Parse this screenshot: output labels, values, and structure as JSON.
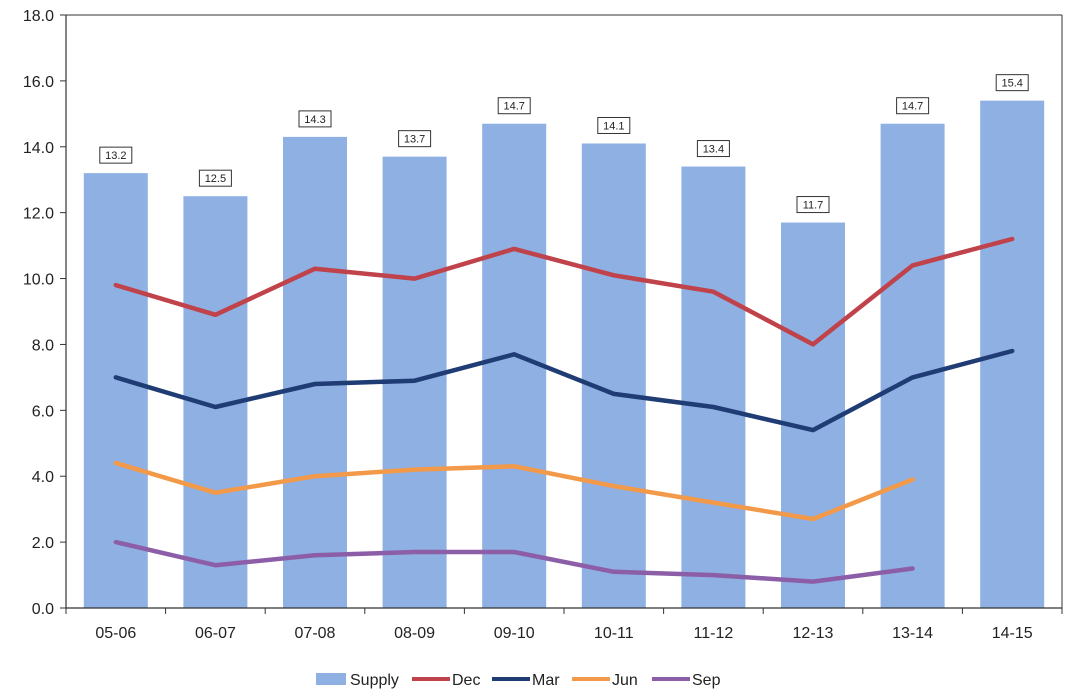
{
  "chart_data": {
    "type": "bar",
    "title": "",
    "xlabel": "",
    "ylabel": "",
    "ylim": [
      0,
      18
    ],
    "yticks": [
      "0.0",
      "2.0",
      "4.0",
      "6.0",
      "8.0",
      "10.0",
      "12.0",
      "14.0",
      "16.0",
      "18.0"
    ],
    "categories": [
      "05-06",
      "06-07",
      "07-08",
      "08-09",
      "09-10",
      "10-11",
      "11-12",
      "12-13",
      "13-14",
      "14-15"
    ],
    "bar_series": {
      "name": "Supply",
      "values": [
        13.2,
        12.5,
        14.3,
        13.7,
        14.7,
        14.1,
        13.4,
        11.7,
        14.7,
        15.4
      ],
      "labels": [
        "13.2",
        "12.5",
        "14.3",
        "13.7",
        "14.7",
        "14.1",
        "13.4",
        "11.7",
        "14.7",
        "15.4"
      ],
      "color": "#8eb0e2"
    },
    "line_series": [
      {
        "name": "Dec",
        "color": "#c0424a",
        "values": [
          9.8,
          8.9,
          10.3,
          10.0,
          10.9,
          10.1,
          9.6,
          8.0,
          10.4,
          11.2
        ]
      },
      {
        "name": "Mar",
        "color": "#1f3c74",
        "values": [
          7.0,
          6.1,
          6.8,
          6.9,
          7.7,
          6.5,
          6.1,
          5.4,
          7.0,
          7.8
        ]
      },
      {
        "name": "Jun",
        "color": "#f39a4a",
        "values": [
          4.4,
          3.5,
          4.0,
          4.2,
          4.3,
          3.7,
          3.2,
          2.7,
          3.9,
          null
        ]
      },
      {
        "name": "Sep",
        "color": "#8d5ea8",
        "values": [
          2.0,
          1.3,
          1.6,
          1.7,
          1.7,
          1.1,
          1.0,
          0.8,
          1.2,
          null
        ]
      }
    ],
    "grid": false,
    "legend_position": "bottom"
  }
}
